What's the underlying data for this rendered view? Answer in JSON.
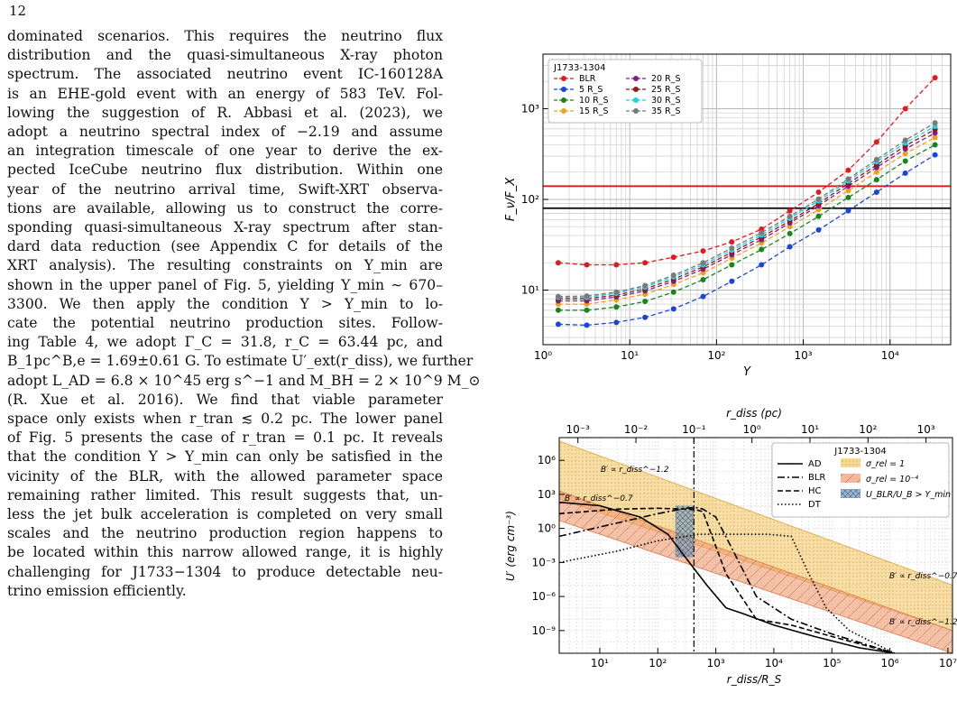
{
  "page_number": "12",
  "body_lines": [
    "dominated scenarios.  This requires the neutrino flux",
    "distribution and the quasi-simultaneous X-ray photon",
    "spectrum.  The associated neutrino event IC-160128A",
    "is an EHE-gold event with an energy of 583 TeV. Fol-",
    "lowing the suggestion of R. Abbasi et al. (2023), we",
    "adopt a neutrino spectral index of −2.19 and assume",
    "an integration timescale of one year to derive the ex-",
    "pected IceCube neutrino flux distribution. Within one",
    "year of the neutrino arrival time, Swift-XRT observa-",
    "tions are available, allowing us to construct the corre-",
    "sponding quasi-simultaneous X-ray spectrum after stan-",
    "dard data reduction (see Appendix C for details of the",
    "XRT analysis). The resulting constraints on Y_min are",
    "shown in the upper panel of Fig. 5, yielding Y_min ∼ 670–",
    "3300.  We then apply the condition Y > Y_min to lo-",
    "cate the potential neutrino production sites.  Follow-",
    "ing Table 4, we adopt Γ_C = 31.8, r_C = 63.44 pc, and",
    "B_1pc^B,e = 1.69±0.61 G. To estimate U′_ext(r_diss), we further",
    "adopt L_AD = 6.8 × 10^45 erg s^−1 and M_BH = 2 × 10^9 M_⊙",
    "(R. Xue et al. 2016).  We find that viable parameter",
    "space only exists when r_tran ≲ 0.2 pc. The lower panel",
    "of Fig. 5 presents the case of r_tran = 0.1 pc.  It reveals",
    "that the condition Y > Y_min can only be satisfied in the",
    "vicinity of the BLR, with the allowed parameter space",
    "remaining rather limited. This result suggests that, un-",
    "less the jet bulk acceleration is completed on very small",
    "scales and the neutrino production region happens to",
    "be located within this narrow allowed range, it is highly",
    "challenging for J1733−1304 to produce detectable neu-",
    "trino emission efficiently."
  ],
  "chart_data": [
    {
      "type": "line",
      "legend_title": "J1733-1304",
      "xlabel": "Y",
      "ylabel": "F_ν/F_X",
      "xscale": "log",
      "yscale": "log",
      "xlim": [
        1,
        50000
      ],
      "ylim": [
        2.5,
        4000
      ],
      "x_ticks": [
        "10⁰",
        "10¹",
        "10²",
        "10³",
        "10⁴"
      ],
      "y_ticks": [
        "10¹",
        "10²",
        "10³"
      ],
      "grid": true,
      "legend_position": "top-left",
      "x": [
        1.5,
        3.2,
        7,
        15,
        32,
        70,
        150,
        330,
        700,
        1500,
        3300,
        7000,
        15000,
        33000
      ],
      "series": [
        {
          "name": "BLR",
          "color": "#e4191c",
          "values": [
            20,
            19,
            19,
            20,
            23,
            27,
            34,
            47,
            75,
            120,
            210,
            430,
            1000,
            2200
          ]
        },
        {
          "name": "5 R_S",
          "color": "#1845e0",
          "values": [
            4.2,
            4.1,
            4.4,
            5,
            6.2,
            8.5,
            12.5,
            19,
            30,
            46,
            75,
            120,
            195,
            310
          ]
        },
        {
          "name": "10 R_S",
          "color": "#168716",
          "values": [
            6,
            6,
            6.5,
            7.5,
            9.5,
            13,
            19,
            28,
            42,
            65,
            105,
            165,
            265,
            400
          ]
        },
        {
          "name": "15 R_S",
          "color": "#f0a020",
          "values": [
            7,
            7,
            7.8,
            9,
            11.5,
            15.5,
            22.5,
            33,
            50,
            77,
            125,
            200,
            320,
            480
          ]
        },
        {
          "name": "20 R_S",
          "color": "#8a1a8a",
          "values": [
            7.6,
            7.6,
            8.4,
            9.8,
            12.5,
            17,
            24.5,
            36,
            55,
            85,
            140,
            225,
            360,
            540
          ]
        },
        {
          "name": "25 R_S",
          "color": "#8e1b1b",
          "values": [
            8,
            8,
            8.8,
            10.3,
            13.2,
            18,
            26,
            38.5,
            58,
            90,
            150,
            240,
            390,
            590
          ]
        },
        {
          "name": "30 R_S",
          "color": "#18d4e6",
          "values": [
            8.3,
            8.3,
            9.2,
            10.8,
            14,
            19,
            27.5,
            40.5,
            62,
            96,
            160,
            260,
            420,
            640
          ]
        },
        {
          "name": "35 R_S",
          "color": "#7a7a7a",
          "values": [
            8.5,
            8.6,
            9.5,
            11.2,
            14.6,
            20,
            29,
            43,
            65,
            101,
            168,
            275,
            450,
            700
          ]
        }
      ],
      "hlines": [
        {
          "y": 140,
          "color": "#e4191c"
        },
        {
          "y": 80,
          "color": "#000000"
        }
      ]
    },
    {
      "type": "line",
      "legend_title": "J1733-1304",
      "xlabel": "r_diss/R_S",
      "top_xlabel": "r_diss (pc)",
      "ylabel": "U′ (erg cm⁻³)",
      "xscale": "log",
      "yscale": "log",
      "xlim": [
        2,
        12000000
      ],
      "ylim": [
        1e-11,
        100000000.0
      ],
      "x_ticks": [
        "10¹",
        "10³",
        "10⁵",
        "10⁷"
      ],
      "x_minor_labels": [
        "10²",
        "10⁴",
        "10⁶"
      ],
      "top_x_ticks": [
        "10⁻³",
        "10⁻²",
        "10⁻¹",
        "10⁰",
        "10¹",
        "10²",
        "10³"
      ],
      "y_ticks": [
        "10⁶",
        "10³",
        "10⁰",
        "10⁻³",
        "10⁻⁶",
        "10⁻⁹"
      ],
      "grid": true,
      "legend_position": "top-right",
      "series": [
        {
          "name": "AD",
          "style": "solid",
          "x": [
            2,
            10,
            50,
            150,
            350,
            700,
            1500,
            3000,
            10000,
            50000,
            300000,
            1200000
          ],
          "values": [
            200,
            100,
            10,
            0.3,
            0.001,
            1e-05,
            1e-07,
            3e-08,
            3e-09,
            3e-10,
            3e-11,
            1e-11
          ]
        },
        {
          "name": "BLR",
          "style": "dashdot",
          "x": [
            2,
            20,
            100,
            300,
            450,
            600,
            1000,
            2000,
            5000,
            20000,
            100000,
            1200000
          ],
          "values": [
            0.2,
            3,
            20,
            60,
            70,
            50,
            10,
            0.01,
            1e-06,
            1e-08,
            5e-10,
            1e-11
          ]
        },
        {
          "name": "HC",
          "style": "dashed",
          "x": [
            2,
            20,
            100,
            300,
            450,
            600,
            1500,
            5000,
            20000,
            100000,
            1200000
          ],
          "values": [
            20,
            50,
            60,
            50,
            45,
            30,
            0.0001,
            1e-08,
            3e-09,
            3e-10,
            1e-11
          ]
        },
        {
          "name": "DT",
          "style": "dotted",
          "x": [
            2,
            20,
            100,
            500,
            2000,
            8000,
            20000,
            40000,
            80000,
            200000,
            1200000
          ],
          "values": [
            0.001,
            0.01,
            0.08,
            0.3,
            0.3,
            0.3,
            0.2,
            0.0001,
            1e-07,
            1e-09,
            1e-11
          ]
        }
      ],
      "bands": [
        {
          "name": "σ_rel = 1",
          "color": "#f5c96a",
          "x": [
            2,
            12000000
          ],
          "upper": [
            50000000,
            1e-05
          ],
          "lower": [
            400,
            1e-09
          ]
        },
        {
          "name": "σ_rel = 10⁻⁴",
          "color": "#ef9a6e",
          "x": [
            2,
            12000000
          ],
          "upper": [
            2000,
            1e-09
          ],
          "lower": [
            5,
            1e-11
          ]
        }
      ],
      "shaded_region": {
        "name": "U_BLR/U_B > Y_min",
        "x": [
          200,
          420
        ],
        "y": [
          0.003,
          100
        ],
        "color": "#6f95c0"
      },
      "vline": {
        "x": 420,
        "style": "dashdot"
      },
      "annotations": [
        "B′ ∝ r_diss^−1.2",
        "B′ ∝ r_diss^−0.7",
        "B′ ∝ r_diss^−0.7",
        "B′ ∝ r_diss^−1.2"
      ]
    }
  ]
}
